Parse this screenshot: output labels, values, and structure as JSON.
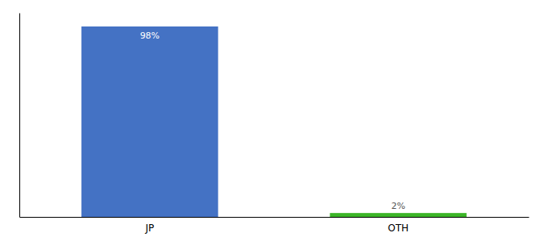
{
  "chart_data": {
    "type": "bar",
    "categories": [
      "JP",
      "OTH"
    ],
    "values": [
      98,
      2
    ],
    "value_labels": [
      "98%",
      "2%"
    ],
    "colors": [
      "#4472c4",
      "#3cb528"
    ],
    "data_labels": true,
    "ylim": [
      0,
      105
    ],
    "tick_labels": "x",
    "grid": false
  }
}
